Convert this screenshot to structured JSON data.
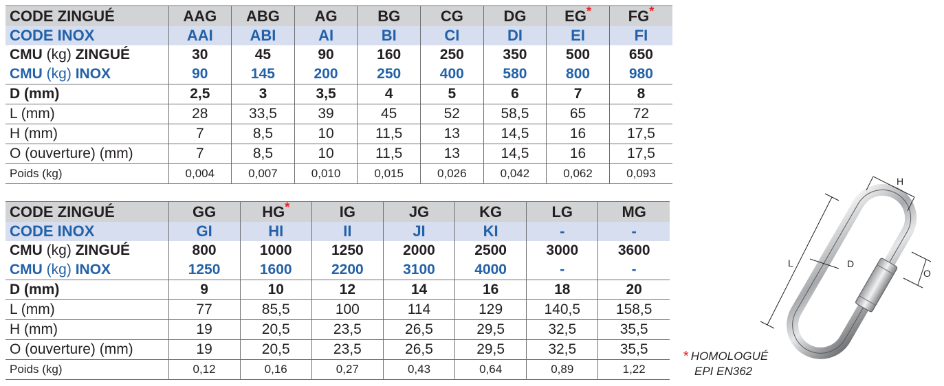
{
  "labels": {
    "code_zingue": "CODE ZINGUÉ",
    "code_inox": "CODE INOX",
    "cmu_prefix": "CMU",
    "cmu_unit": "(kg)",
    "zingue": "ZINGUÉ",
    "inox": "INOX",
    "d": "D (mm)",
    "l": "L (mm)",
    "h": "H (mm)",
    "o": "O (ouverture) (mm)",
    "poids": "Poids (kg)"
  },
  "table1": {
    "code_zingue": [
      "AAG",
      "ABG",
      "AG",
      "BG",
      "CG",
      "DG",
      "EG",
      "FG"
    ],
    "starred": [
      false,
      false,
      false,
      false,
      false,
      false,
      true,
      true
    ],
    "code_inox": [
      "AAI",
      "ABI",
      "AI",
      "BI",
      "CI",
      "DI",
      "EI",
      "FI"
    ],
    "cmu_zingue": [
      "30",
      "45",
      "90",
      "160",
      "250",
      "350",
      "500",
      "650"
    ],
    "cmu_inox": [
      "90",
      "145",
      "200",
      "250",
      "400",
      "580",
      "800",
      "980"
    ],
    "d": [
      "2,5",
      "3",
      "3,5",
      "4",
      "5",
      "6",
      "7",
      "8"
    ],
    "l": [
      "28",
      "33,5",
      "39",
      "45",
      "52",
      "58,5",
      "65",
      "72"
    ],
    "h": [
      "7",
      "8,5",
      "10",
      "11,5",
      "13",
      "14,5",
      "16",
      "17,5"
    ],
    "o": [
      "7",
      "8,5",
      "10",
      "11,5",
      "13",
      "14,5",
      "16",
      "17,5"
    ],
    "poids": [
      "0,004",
      "0,007",
      "0,010",
      "0,015",
      "0,026",
      "0,042",
      "0,062",
      "0,093"
    ]
  },
  "table2": {
    "code_zingue": [
      "GG",
      "HG",
      "IG",
      "JG",
      "KG",
      "LG",
      "MG"
    ],
    "starred": [
      false,
      true,
      false,
      false,
      false,
      false,
      false
    ],
    "code_inox": [
      "GI",
      "HI",
      "II",
      "JI",
      "KI",
      "-",
      "-"
    ],
    "cmu_zingue": [
      "800",
      "1000",
      "1250",
      "2000",
      "2500",
      "3000",
      "3600"
    ],
    "cmu_inox": [
      "1250",
      "1600",
      "2200",
      "3100",
      "4000",
      "-",
      "-"
    ],
    "d": [
      "9",
      "10",
      "12",
      "14",
      "16",
      "18",
      "20"
    ],
    "l": [
      "77",
      "85,5",
      "100",
      "114",
      "129",
      "140,5",
      "158,5"
    ],
    "h": [
      "19",
      "20,5",
      "23,5",
      "26,5",
      "29,5",
      "32,5",
      "35,5"
    ],
    "o": [
      "19",
      "20,5",
      "23,5",
      "26,5",
      "29,5",
      "32,5",
      "35,5"
    ],
    "poids": [
      "0,12",
      "0,16",
      "0,27",
      "0,43",
      "0,64",
      "0,89",
      "1,22"
    ]
  },
  "diagram": {
    "label_h": "H",
    "label_l": "L",
    "label_d": "D",
    "label_o": "O"
  },
  "note": {
    "star": "*",
    "line1": "HOMOLOGUÉ",
    "line2": "EPI EN362"
  },
  "colors": {
    "inox_blue": "#2261a8",
    "star_red": "#ed1c24",
    "header_grey": "#d1d3d4",
    "inox_row_bg": "#d6def0"
  }
}
